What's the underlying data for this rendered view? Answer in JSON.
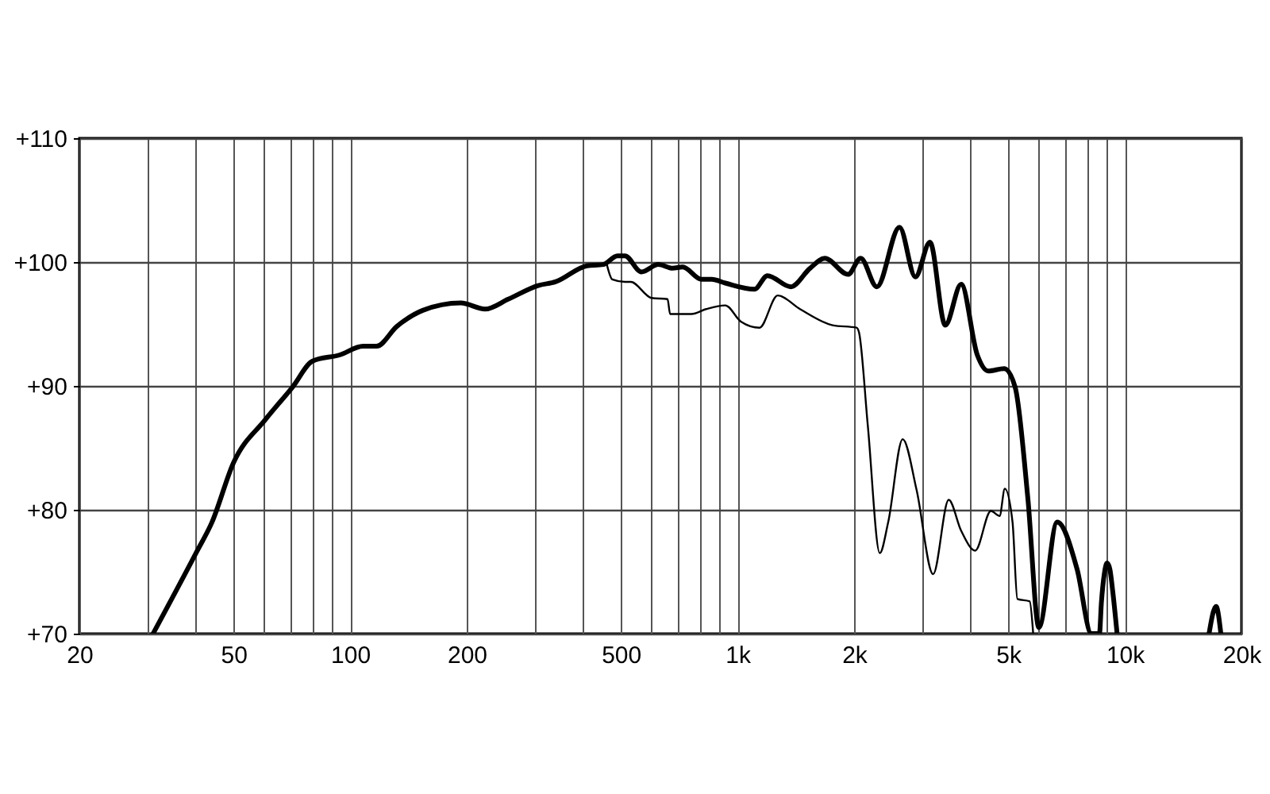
{
  "chart_data": {
    "type": "line",
    "log": "x",
    "grid": true,
    "xlim": [
      20,
      20000
    ],
    "ylim": [
      70,
      110
    ],
    "xticks": [
      {
        "value": 20,
        "label": "20"
      },
      {
        "value": 30,
        "label": null
      },
      {
        "value": 40,
        "label": null
      },
      {
        "value": 50,
        "label": "50"
      },
      {
        "value": 60,
        "label": null
      },
      {
        "value": 70,
        "label": null
      },
      {
        "value": 80,
        "label": null
      },
      {
        "value": 90,
        "label": null
      },
      {
        "value": 100,
        "label": "100"
      },
      {
        "value": 200,
        "label": "200"
      },
      {
        "value": 300,
        "label": null
      },
      {
        "value": 400,
        "label": null
      },
      {
        "value": 500,
        "label": "500"
      },
      {
        "value": 600,
        "label": null
      },
      {
        "value": 700,
        "label": null
      },
      {
        "value": 800,
        "label": null
      },
      {
        "value": 900,
        "label": null
      },
      {
        "value": 1000,
        "label": "1k"
      },
      {
        "value": 2000,
        "label": "2k"
      },
      {
        "value": 3000,
        "label": null
      },
      {
        "value": 4000,
        "label": null
      },
      {
        "value": 5000,
        "label": "5k"
      },
      {
        "value": 6000,
        "label": null
      },
      {
        "value": 7000,
        "label": null
      },
      {
        "value": 8000,
        "label": null
      },
      {
        "value": 9000,
        "label": null
      },
      {
        "value": 10000,
        "label": "10k"
      },
      {
        "value": 20000,
        "label": "20k"
      }
    ],
    "yticks": [
      {
        "value": 70,
        "label": "+70"
      },
      {
        "value": 80,
        "label": "+80"
      },
      {
        "value": 90,
        "label": "+90"
      },
      {
        "value": 100,
        "label": "+100"
      },
      {
        "value": 110,
        "label": "+110"
      }
    ],
    "marker": "none",
    "line_style": "solid",
    "series": [
      {
        "color": "#000000",
        "x": [
          31,
          40,
          44,
          50,
          60.5,
          71,
          80,
          94,
          108,
          117,
          132,
          154,
          193,
          223,
          256,
          306,
          339,
          409,
          450,
          490,
          512,
          565,
          625,
          680,
          722,
          808,
          858,
          930,
          1106,
          1195,
          1373,
          1540,
          1680,
          1930,
          2080,
          2290,
          2620,
          2880,
          3140,
          3440,
          3780,
          4160,
          4440,
          4880,
          5210,
          5620,
          6000,
          6690,
          7530,
          8200,
          8600,
          8700,
          8850,
          9000,
          9150,
          9300,
          9550,
          12000,
          16500,
          17200,
          17700
        ],
        "values": [
          70,
          76.5,
          79,
          83.8,
          87.3,
          89.9,
          92,
          92.5,
          93.2,
          93.2,
          94.8,
          96.1,
          96.7,
          96.2,
          97,
          98.1,
          98.4,
          99.7,
          99.8,
          100.5,
          100.5,
          99.2,
          99.8,
          99.5,
          99.6,
          98.6,
          98.6,
          98.3,
          97.8,
          98.9,
          98,
          99.5,
          100.3,
          99,
          100.3,
          98,
          102.8,
          98.8,
          101.6,
          94.9,
          98.2,
          92.5,
          91.2,
          91.4,
          89.9,
          80.9,
          70.5,
          79,
          75.2,
          70,
          70,
          72.5,
          74.8,
          75.7,
          75.2,
          73.5,
          70,
          null,
          70,
          72.2,
          70
        ]
      },
      {
        "color": "#000000",
        "x": [
          460,
          475,
          512,
          530,
          600,
          660,
          670,
          760,
          830,
          930,
          1020,
          1140,
          1270,
          1450,
          1760,
          2030,
          2060,
          2170,
          2330,
          2450,
          2670,
          2900,
          3200,
          3510,
          3780,
          4110,
          4510,
          4750,
          4900,
          5130,
          5280,
          5680,
          5800
        ],
        "values": [
          99.8,
          98.6,
          98.4,
          98.4,
          97.1,
          97,
          95.8,
          95.8,
          96.2,
          96.5,
          95.2,
          94.7,
          97.3,
          96.2,
          94.9,
          94.7,
          94.3,
          86.8,
          76.5,
          79,
          85.7,
          81.6,
          74.8,
          80.8,
          78.3,
          76.7,
          79.9,
          79.5,
          81.7,
          79,
          72.8,
          72.6,
          70
        ]
      }
    ]
  }
}
